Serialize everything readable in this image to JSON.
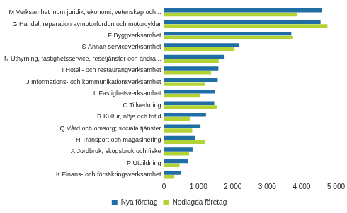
{
  "chart_data": {
    "type": "bar",
    "orientation": "horizontal",
    "categories": [
      "M Verksamhet inom juridik, ekonomi, vetenskap och...",
      "G Handel; reparation avmotorfordon och motorcyklar",
      "F Byggverksamhet",
      "S Annan serviceverksamhet",
      "N Uthyrning, fastighetsservice, resetjänster och andra...",
      "I Hotell- och restaurangverksamhet",
      "J Informations- och kommunikationsverksamhet",
      "L Fastighetsverksamhet",
      "C Tillverkning",
      "R Kultur, nöje och fritid",
      "Q Vård och omsorg; sociala tjänster",
      "H Transport och magasinering",
      "A Jordbruk, skogsbruk och fiske",
      "P Utbildning",
      "K Finans- och försäkringsverksamhet"
    ],
    "series": [
      {
        "name": "Nya företag",
        "color": "#1f6fa5",
        "values": [
          4600,
          4550,
          3700,
          2180,
          1760,
          1580,
          1560,
          1470,
          1460,
          1220,
          1060,
          900,
          830,
          700,
          500
        ]
      },
      {
        "name": "Nedlagda företag",
        "color": "#b3d334",
        "values": [
          3880,
          4750,
          3750,
          2050,
          1590,
          1370,
          1200,
          1050,
          1530,
          760,
          820,
          1200,
          730,
          450,
          300
        ]
      }
    ],
    "xlim": [
      0,
      5000
    ],
    "xticks": [
      0,
      {
        "value": 1000,
        "label": "1 000"
      },
      {
        "value": 2000,
        "label": "2 000"
      },
      {
        "value": 3000,
        "label": "3 000"
      },
      {
        "value": 4000,
        "label": "4 000"
      },
      {
        "value": 5000,
        "label": "5 000"
      }
    ],
    "grid": false,
    "legend": "bottom"
  }
}
